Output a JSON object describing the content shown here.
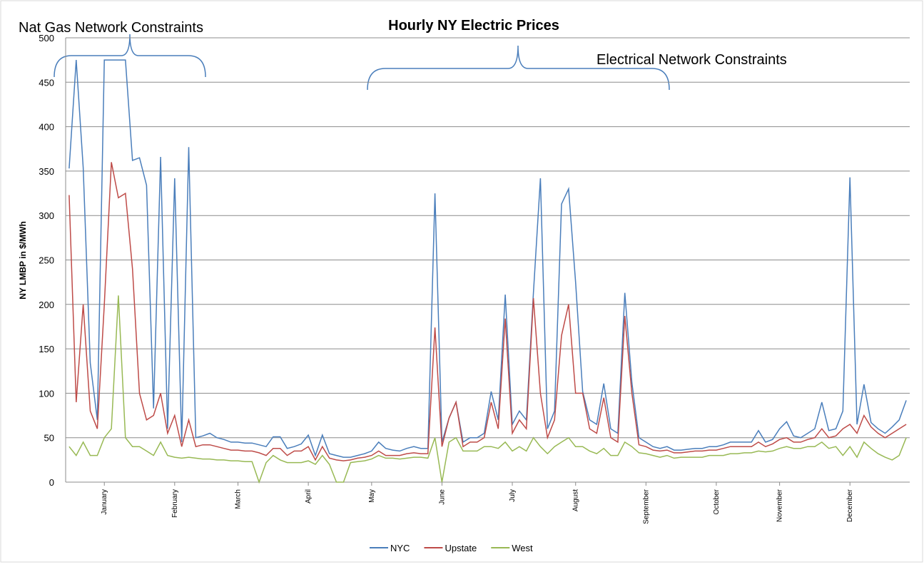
{
  "chart_data": {
    "type": "line",
    "title": "Hourly NY Electric Prices",
    "y_label": "NY LMBP in $/MWh",
    "annotations": [
      "Nat Gas Network Constraints",
      "Electrical Network Constraints"
    ],
    "categories": [
      null,
      null,
      null,
      null,
      null,
      "January",
      null,
      null,
      null,
      null,
      null,
      null,
      null,
      null,
      null,
      "February",
      null,
      null,
      null,
      null,
      null,
      null,
      null,
      null,
      "March",
      null,
      null,
      null,
      null,
      null,
      null,
      null,
      null,
      null,
      "April",
      null,
      null,
      null,
      null,
      null,
      null,
      null,
      null,
      "May",
      null,
      null,
      null,
      null,
      null,
      null,
      null,
      null,
      null,
      "June",
      null,
      null,
      null,
      null,
      null,
      null,
      null,
      null,
      null,
      "July",
      null,
      null,
      null,
      null,
      null,
      null,
      null,
      null,
      "August",
      null,
      null,
      null,
      null,
      null,
      null,
      null,
      null,
      null,
      "September",
      null,
      null,
      null,
      null,
      null,
      null,
      null,
      null,
      null,
      "October",
      null,
      null,
      null,
      null,
      null,
      null,
      null,
      null,
      "November",
      null,
      null,
      null,
      null,
      null,
      null,
      null,
      null,
      null,
      "December",
      null,
      null,
      null,
      null,
      null,
      null,
      null,
      null
    ],
    "series": [
      {
        "name": "NYC",
        "color": "#4a7ebb",
        "values": [
          353,
          475,
          354,
          134,
          70,
          475,
          475,
          475,
          475,
          362,
          365,
          334,
          83,
          366,
          60,
          342,
          45,
          377,
          50,
          52,
          55,
          50,
          48,
          45,
          45,
          44,
          44,
          42,
          40,
          51,
          51,
          38,
          40,
          43,
          53,
          30,
          53,
          32,
          30,
          28,
          28,
          30,
          32,
          35,
          45,
          38,
          36,
          35,
          38,
          40,
          38,
          38,
          325,
          45,
          72,
          90,
          45,
          50,
          50,
          55,
          102,
          70,
          211,
          65,
          80,
          70,
          213,
          342,
          60,
          80,
          313,
          330,
          225,
          102,
          70,
          65,
          111,
          60,
          55,
          213,
          112,
          50,
          45,
          40,
          38,
          40,
          36,
          36,
          37,
          38,
          38,
          40,
          40,
          42,
          45,
          45,
          45,
          45,
          58,
          45,
          48,
          60,
          68,
          52,
          50,
          55,
          60,
          90,
          58,
          60,
          80,
          343,
          65,
          110,
          67,
          60,
          55,
          62,
          70,
          92
        ]
      },
      {
        "name": "Upstate",
        "color": "#be4b48",
        "values": [
          323,
          90,
          200,
          80,
          60,
          200,
          360,
          320,
          325,
          240,
          100,
          70,
          75,
          100,
          55,
          75,
          40,
          70,
          40,
          42,
          42,
          40,
          38,
          36,
          36,
          35,
          35,
          33,
          30,
          38,
          38,
          30,
          35,
          35,
          40,
          25,
          40,
          27,
          25,
          24,
          25,
          27,
          28,
          30,
          35,
          30,
          30,
          30,
          32,
          33,
          32,
          32,
          174,
          40,
          72,
          90,
          40,
          45,
          45,
          50,
          90,
          60,
          184,
          55,
          70,
          60,
          207,
          100,
          50,
          70,
          165,
          200,
          100,
          100,
          60,
          55,
          95,
          50,
          45,
          187,
          100,
          42,
          40,
          36,
          35,
          36,
          33,
          33,
          34,
          35,
          35,
          36,
          36,
          38,
          40,
          40,
          40,
          40,
          45,
          40,
          43,
          48,
          50,
          45,
          45,
          48,
          50,
          60,
          50,
          52,
          60,
          65,
          55,
          75,
          62,
          55,
          50,
          55,
          60,
          65
        ]
      },
      {
        "name": "West",
        "color": "#98b954",
        "values": [
          40,
          30,
          45,
          30,
          30,
          50,
          60,
          210,
          50,
          40,
          40,
          35,
          30,
          45,
          30,
          28,
          27,
          28,
          27,
          26,
          26,
          25,
          25,
          24,
          24,
          23,
          23,
          0,
          22,
          30,
          25,
          22,
          22,
          22,
          24,
          20,
          30,
          20,
          0,
          0,
          22,
          23,
          24,
          26,
          30,
          27,
          27,
          26,
          27,
          28,
          28,
          27,
          50,
          0,
          45,
          50,
          35,
          35,
          35,
          40,
          40,
          38,
          45,
          35,
          40,
          35,
          50,
          40,
          32,
          40,
          45,
          50,
          40,
          40,
          35,
          32,
          38,
          30,
          30,
          45,
          40,
          33,
          32,
          30,
          28,
          30,
          27,
          28,
          28,
          28,
          28,
          30,
          30,
          30,
          32,
          32,
          33,
          33,
          35,
          34,
          35,
          38,
          40,
          38,
          38,
          40,
          40,
          45,
          38,
          40,
          30,
          40,
          28,
          45,
          38,
          32,
          28,
          25,
          30,
          50
        ]
      }
    ],
    "ylim": [
      0,
      500
    ],
    "yticks": [
      0,
      50,
      100,
      150,
      200,
      250,
      300,
      350,
      400,
      450,
      500
    ],
    "grid": true,
    "legend": "bottom"
  }
}
